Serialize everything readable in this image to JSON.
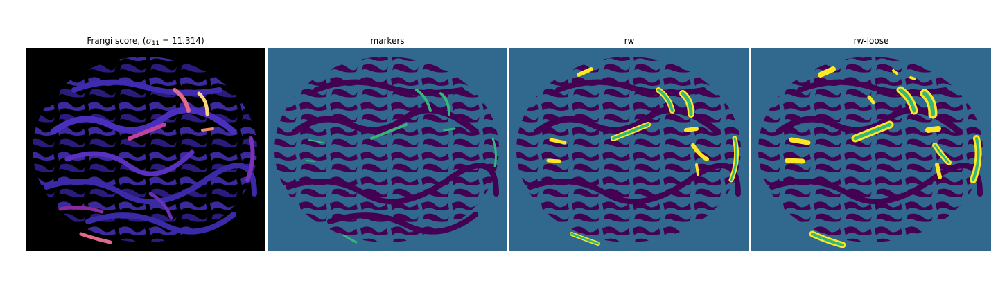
{
  "panels": [
    {
      "title_prefix": "Frangi score, (",
      "sigma_symbol": "σ",
      "sigma_subscript": "11",
      "equals": " = ",
      "sigma_value": "11.314",
      "title_suffix": ")",
      "colormap": "magma"
    },
    {
      "title": "markers",
      "colormap": "viridis"
    },
    {
      "title": "rw",
      "colormap": "viridis"
    },
    {
      "title": "rw-loose",
      "colormap": "viridis"
    }
  ],
  "colors": {
    "background_dark": "#000000",
    "label_teal": "#31688e",
    "label_purple": "#440154",
    "label_green": "#35b779",
    "label_yellow": "#fde725",
    "magma_low": "#2c1a7a",
    "magma_mid": "#8b2a9c",
    "magma_high": "#fcd57a"
  }
}
